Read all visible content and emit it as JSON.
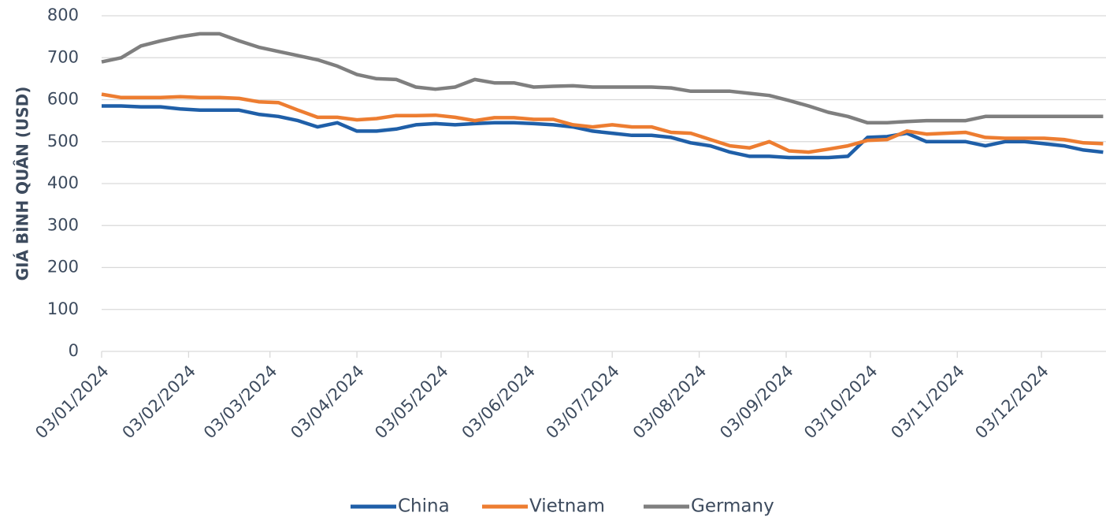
{
  "chart_data": {
    "type": "line",
    "y_label": "GIÁ BÌNH QUÂN (USD)",
    "x": [
      "2024-01-03",
      "2024-01-10",
      "2024-01-17",
      "2024-01-24",
      "2024-01-31",
      "2024-02-07",
      "2024-02-14",
      "2024-02-21",
      "2024-02-28",
      "2024-03-06",
      "2024-03-13",
      "2024-03-20",
      "2024-03-27",
      "2024-04-03",
      "2024-04-10",
      "2024-04-17",
      "2024-04-24",
      "2024-05-01",
      "2024-05-08",
      "2024-05-15",
      "2024-05-22",
      "2024-05-29",
      "2024-06-05",
      "2024-06-12",
      "2024-06-19",
      "2024-06-26",
      "2024-07-03",
      "2024-07-10",
      "2024-07-17",
      "2024-07-24",
      "2024-07-31",
      "2024-08-07",
      "2024-08-14",
      "2024-08-21",
      "2024-08-28",
      "2024-09-04",
      "2024-09-11",
      "2024-09-18",
      "2024-09-25",
      "2024-10-02",
      "2024-10-09",
      "2024-10-16",
      "2024-10-23",
      "2024-10-30",
      "2024-11-06",
      "2024-11-13",
      "2024-11-20",
      "2024-11-27",
      "2024-12-04",
      "2024-12-11",
      "2024-12-18",
      "2024-12-25"
    ],
    "series": [
      {
        "name": "China",
        "color": "#1f5fa8",
        "values": [
          585,
          585,
          583,
          583,
          578,
          575,
          575,
          575,
          565,
          560,
          550,
          535,
          545,
          525,
          525,
          530,
          540,
          543,
          540,
          543,
          545,
          545,
          543,
          540,
          535,
          525,
          520,
          515,
          515,
          510,
          497,
          490,
          475,
          465,
          465,
          462,
          462,
          462,
          465,
          510,
          512,
          520,
          500,
          500,
          500,
          490,
          500,
          500,
          495,
          490,
          480,
          475
        ]
      },
      {
        "name": "Vietnam",
        "color": "#ed7d31",
        "values": [
          613,
          605,
          605,
          605,
          607,
          605,
          605,
          603,
          595,
          593,
          575,
          558,
          558,
          552,
          555,
          562,
          562,
          563,
          558,
          550,
          557,
          557,
          553,
          553,
          540,
          535,
          540,
          535,
          535,
          522,
          520,
          505,
          490,
          485,
          500,
          478,
          475,
          482,
          490,
          503,
          505,
          525,
          518,
          520,
          522,
          510,
          508,
          508,
          508,
          505,
          497,
          495
        ]
      },
      {
        "name": "Germany",
        "color": "#7f7f7f",
        "values": [
          690,
          700,
          728,
          740,
          750,
          757,
          757,
          740,
          725,
          715,
          705,
          695,
          680,
          660,
          650,
          648,
          630,
          625,
          630,
          648,
          640,
          640,
          630,
          632,
          633,
          630,
          630,
          630,
          630,
          628,
          620,
          620,
          620,
          615,
          610,
          598,
          585,
          570,
          560,
          545,
          545,
          548,
          550,
          550,
          550,
          560,
          560,
          560,
          560,
          560,
          560,
          560
        ]
      }
    ],
    "xlim": [
      "2024-01-03",
      "2024-12-26"
    ],
    "xticks": [
      {
        "value": "2024-01-03",
        "label": "03/01/2024"
      },
      {
        "value": "2024-02-03",
        "label": "03/02/2024"
      },
      {
        "value": "2024-03-03",
        "label": "03/03/2024"
      },
      {
        "value": "2024-04-03",
        "label": "03/04/2024"
      },
      {
        "value": "2024-05-03",
        "label": "03/05/2024"
      },
      {
        "value": "2024-06-03",
        "label": "03/06/2024"
      },
      {
        "value": "2024-07-03",
        "label": "03/07/2024"
      },
      {
        "value": "2024-08-03",
        "label": "03/08/2024"
      },
      {
        "value": "2024-09-03",
        "label": "03/09/2024"
      },
      {
        "value": "2024-10-03",
        "label": "03/10/2024"
      },
      {
        "value": "2024-11-03",
        "label": "03/11/2024"
      },
      {
        "value": "2024-12-03",
        "label": "03/12/2024"
      }
    ],
    "ylim": [
      0,
      800
    ],
    "yticks": [
      0,
      100,
      200,
      300,
      400,
      500,
      600,
      700,
      800
    ],
    "grid": true,
    "legend": "bottom"
  }
}
